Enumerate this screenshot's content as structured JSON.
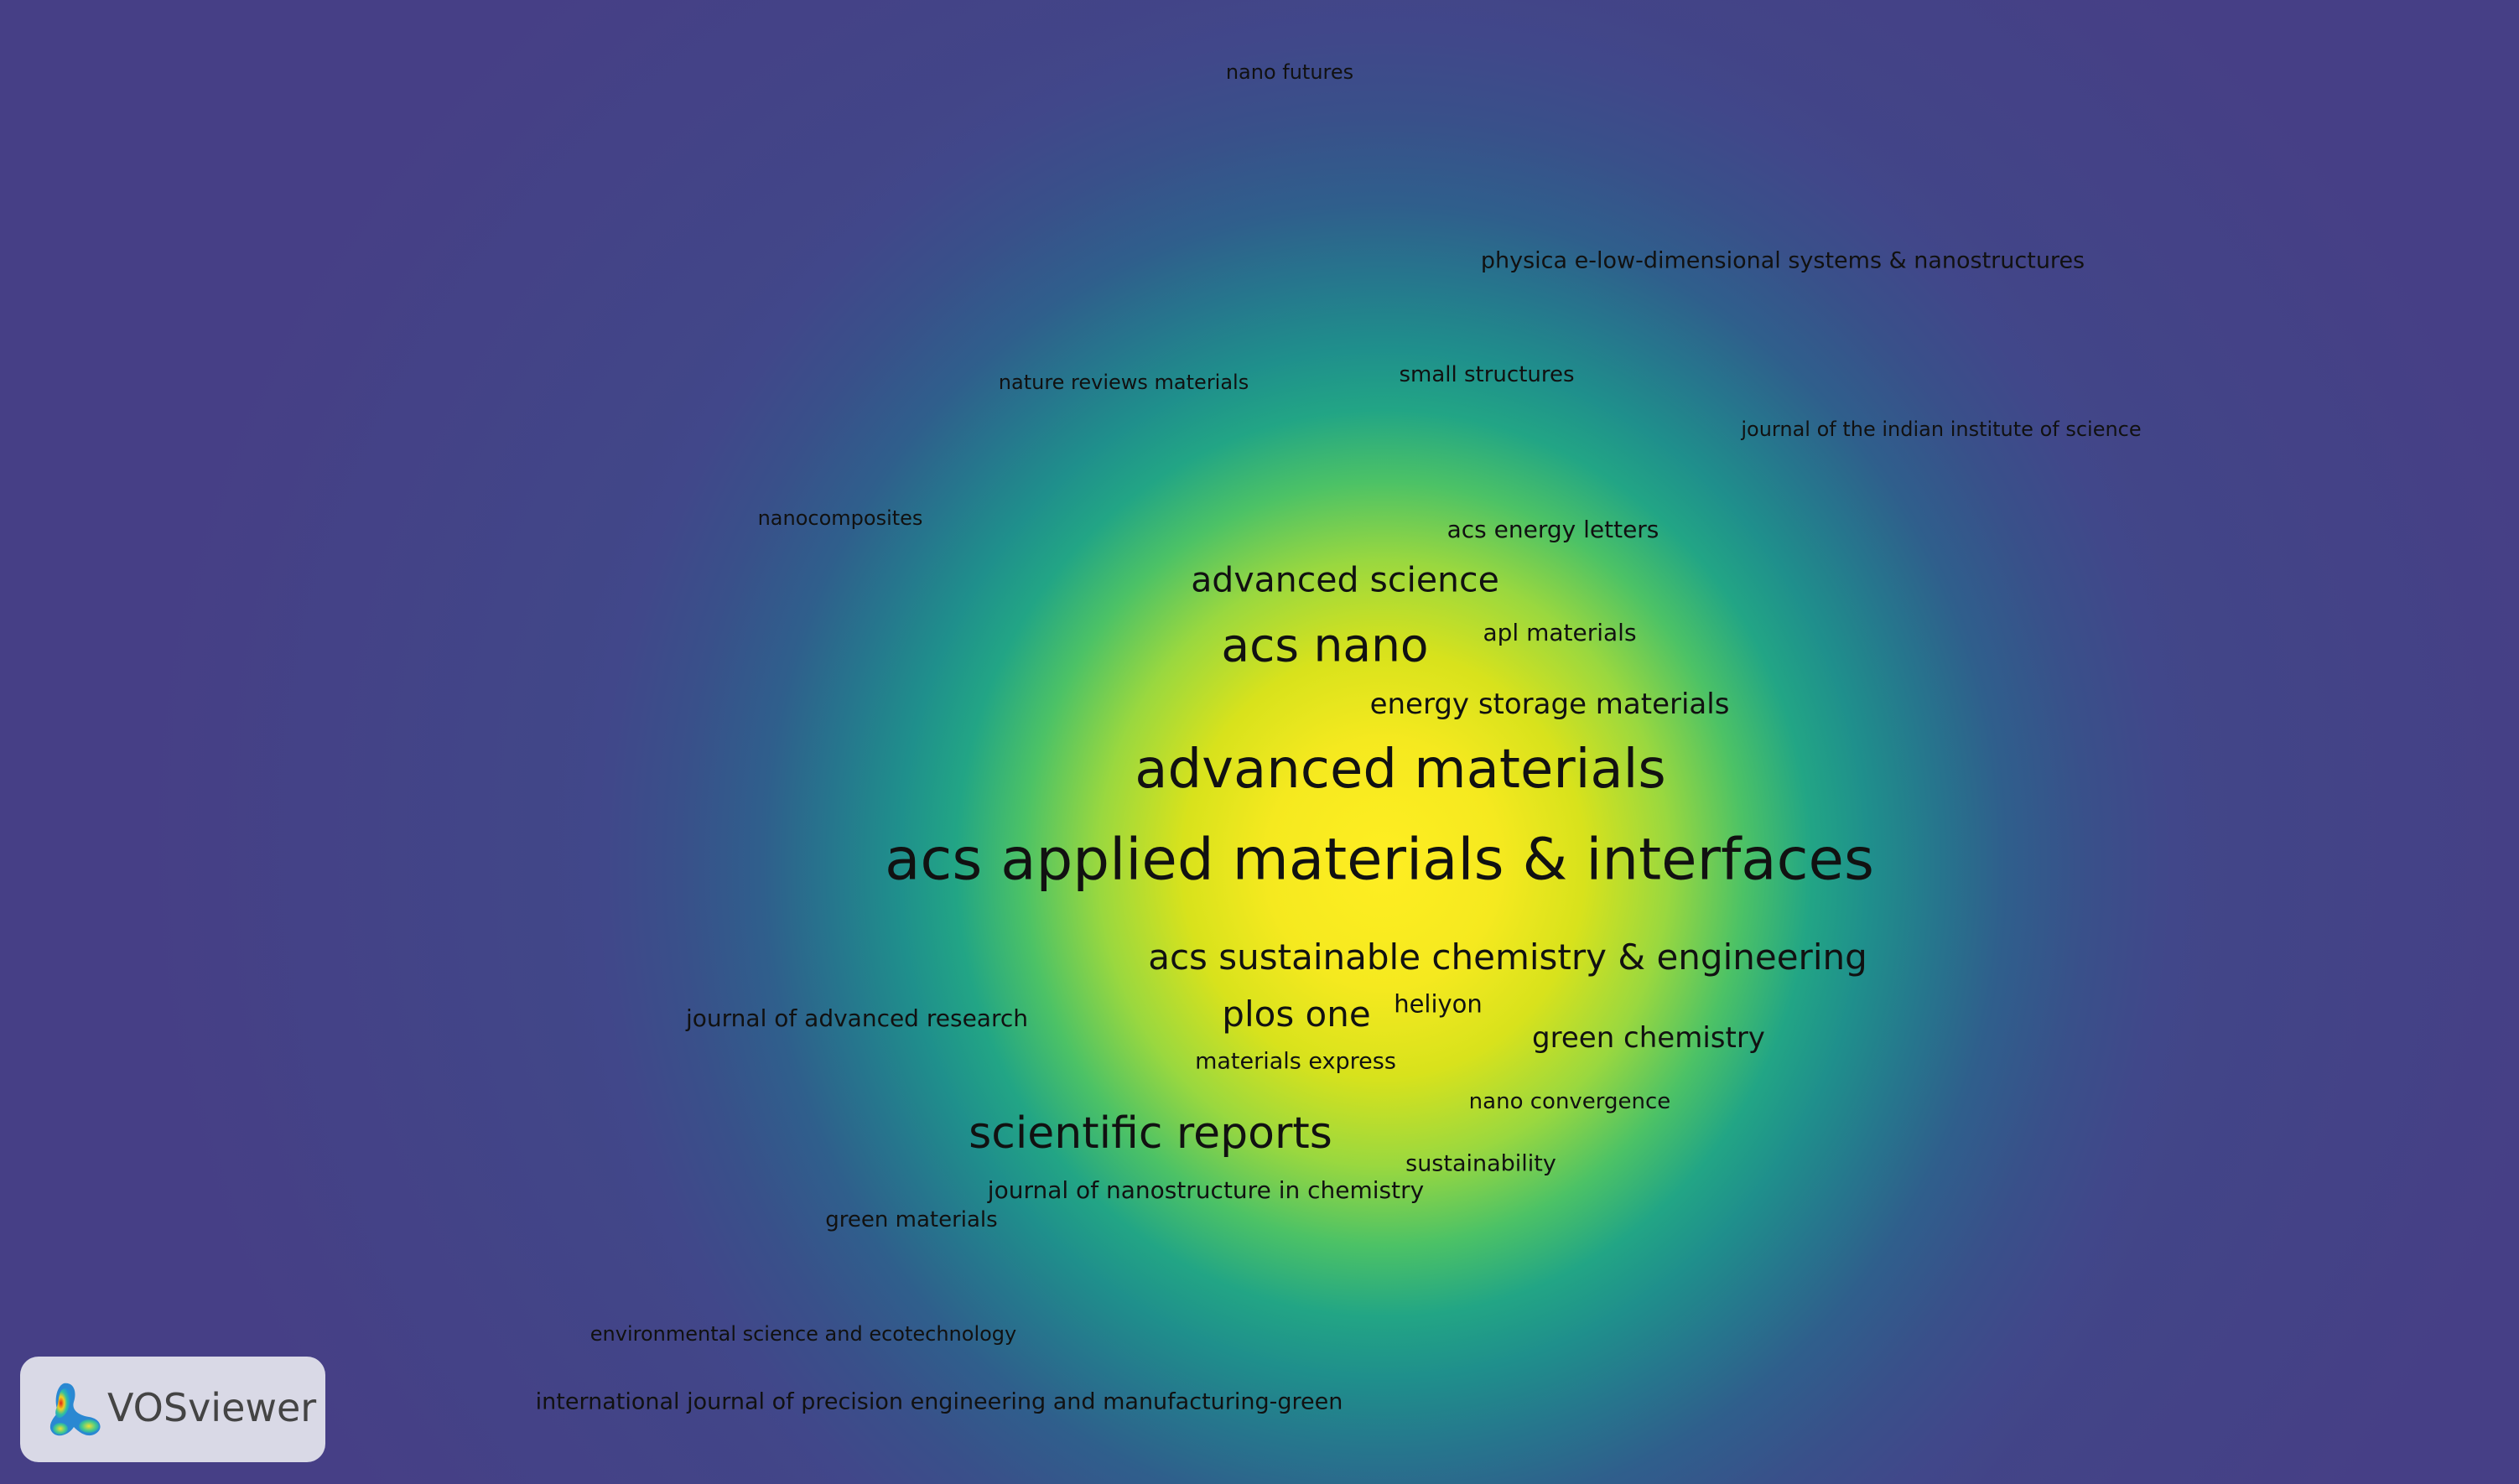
{
  "map": {
    "type": "density-visualization",
    "items": [
      {
        "label": "nano futures"
      },
      {
        "label": "physica e-low-dimensional systems & nanostructures"
      },
      {
        "label": "nature reviews materials"
      },
      {
        "label": "small structures"
      },
      {
        "label": "journal of the indian institute of science"
      },
      {
        "label": "nanocomposites"
      },
      {
        "label": "acs energy letters"
      },
      {
        "label": "advanced science"
      },
      {
        "label": "acs nano"
      },
      {
        "label": "apl materials"
      },
      {
        "label": "energy storage materials"
      },
      {
        "label": "advanced materials"
      },
      {
        "label": "acs applied materials & interfaces"
      },
      {
        "label": "acs sustainable chemistry & engineering"
      },
      {
        "label": "journal of advanced research"
      },
      {
        "label": "plos one"
      },
      {
        "label": "heliyon"
      },
      {
        "label": "green chemistry"
      },
      {
        "label": "materials express"
      },
      {
        "label": "nano convergence"
      },
      {
        "label": "scientific reports"
      },
      {
        "label": "sustainability"
      },
      {
        "label": "journal of nanostructure in chemistry"
      },
      {
        "label": "green materials"
      },
      {
        "label": "environmental science and ecotechnology"
      },
      {
        "label": "international journal of precision engineering and manufacturing-green"
      }
    ],
    "colors": {
      "background": "#463f86",
      "peak": "#ffee22",
      "mid": "#22a585",
      "text": "#111111"
    }
  },
  "logo": {
    "text": "VOSviewer",
    "icon": "vosviewer-logo-icon"
  }
}
